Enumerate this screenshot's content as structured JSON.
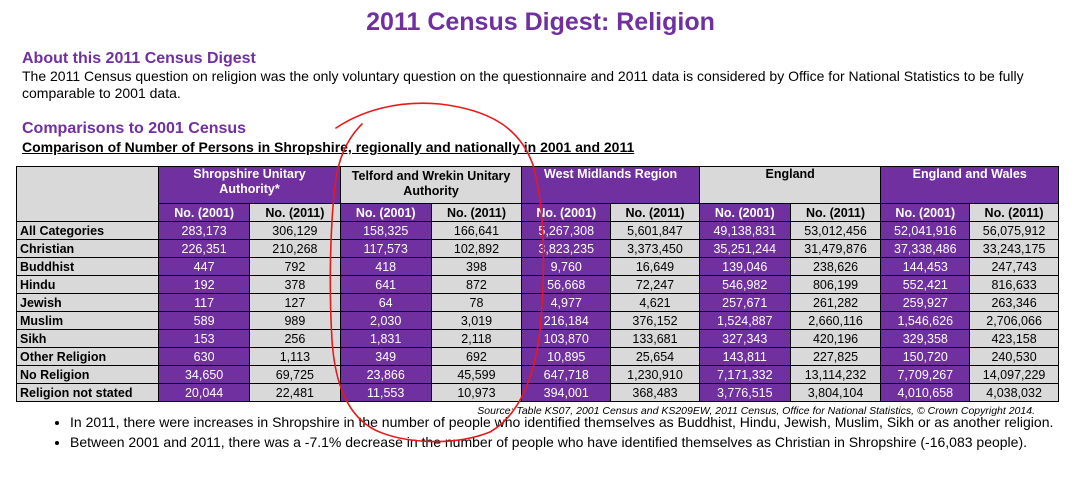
{
  "title": "2011 Census Digest: Religion",
  "about": {
    "heading": "About this 2011 Census Digest",
    "text": "The 2011 Census question on religion was the only voluntary question on the questionnaire and 2011 data is considered by Office for National Statistics to be fully comparable to 2001 data."
  },
  "comparisons": {
    "heading": "Comparisons to 2001 Census",
    "subheading": "Comparison of Number of Persons in Shropshire, regionally and nationally in 2001 and 2011"
  },
  "table": {
    "areas": [
      "Shropshire Unitary Authority*",
      "Telford and Wrekin Unitary Authority",
      "West Midlands Region",
      "England",
      "England and Wales"
    ],
    "col2001": "No. (2001)",
    "col2011": "No. (2011)",
    "rows": [
      {
        "label": "All Categories",
        "values": [
          "283,173",
          "306,129",
          "158,325",
          "166,641",
          "5,267,308",
          "5,601,847",
          "49,138,831",
          "53,012,456",
          "52,041,916",
          "56,075,912"
        ]
      },
      {
        "label": "Christian",
        "values": [
          "226,351",
          "210,268",
          "117,573",
          "102,892",
          "3,823,235",
          "3,373,450",
          "35,251,244",
          "31,479,876",
          "37,338,486",
          "33,243,175"
        ]
      },
      {
        "label": "Buddhist",
        "values": [
          "447",
          "792",
          "418",
          "398",
          "9,760",
          "16,649",
          "139,046",
          "238,626",
          "144,453",
          "247,743"
        ]
      },
      {
        "label": "Hindu",
        "values": [
          "192",
          "378",
          "641",
          "872",
          "56,668",
          "72,247",
          "546,982",
          "806,199",
          "552,421",
          "816,633"
        ]
      },
      {
        "label": "Jewish",
        "values": [
          "117",
          "127",
          "64",
          "78",
          "4,977",
          "4,621",
          "257,671",
          "261,282",
          "259,927",
          "263,346"
        ]
      },
      {
        "label": "Muslim",
        "values": [
          "589",
          "989",
          "2,030",
          "3,019",
          "216,184",
          "376,152",
          "1,524,887",
          "2,660,116",
          "1,546,626",
          "2,706,066"
        ]
      },
      {
        "label": "Sikh",
        "values": [
          "153",
          "256",
          "1,831",
          "2,118",
          "103,870",
          "133,681",
          "327,343",
          "420,196",
          "329,358",
          "423,158"
        ]
      },
      {
        "label": "Other Religion",
        "values": [
          "630",
          "1,113",
          "349",
          "692",
          "10,895",
          "25,654",
          "143,811",
          "227,825",
          "150,720",
          "240,530"
        ]
      },
      {
        "label": "No Religion",
        "values": [
          "34,650",
          "69,725",
          "23,866",
          "45,599",
          "647,718",
          "1,230,910",
          "7,171,332",
          "13,114,232",
          "7,709,267",
          "14,097,229"
        ]
      },
      {
        "label": "Religion not stated",
        "values": [
          "20,044",
          "22,481",
          "11,553",
          "10,973",
          "394,001",
          "368,483",
          "3,776,515",
          "3,804,104",
          "4,010,658",
          "4,038,032"
        ]
      }
    ]
  },
  "source": "Source: Table KS07, 2001 Census and KS209EW, 2011 Census, Office for National Statistics, © Crown Copyright 2014.",
  "bullets": [
    "In 2011, there were increases in Shropshire in the number of people who identified themselves as Buddhist, Hindu, Jewish, Muslim, Sikh or as another religion.",
    "Between 2001 and 2011, there was a -7.1% decrease in the number of people who have identified themselves as Christian in Shropshire (-16,083 people)."
  ],
  "colors": {
    "purple": "#7030a0",
    "grey": "#d9d9d9",
    "annotation": "#e8191b"
  }
}
